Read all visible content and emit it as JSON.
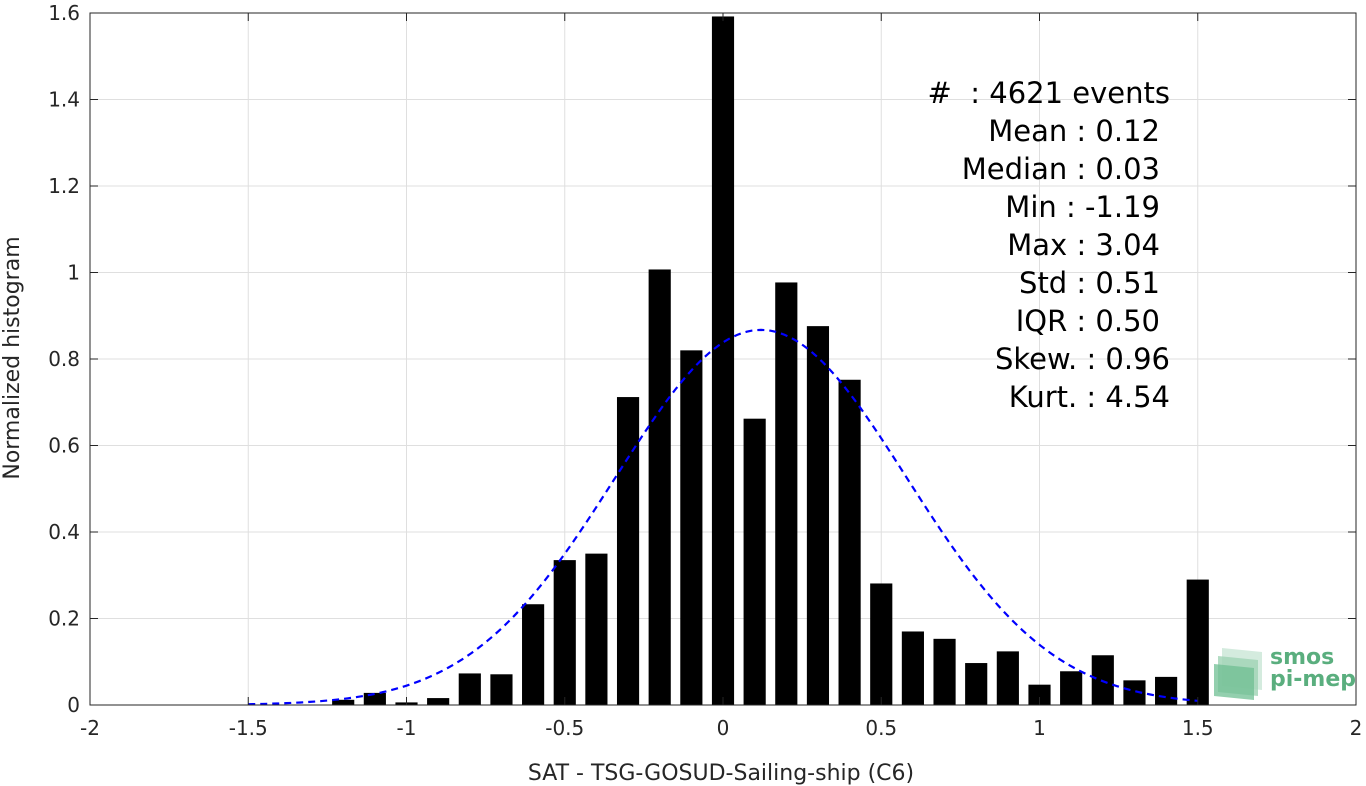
{
  "chart_data": {
    "type": "bar",
    "xlabel": "SAT - TSG-GOSUD-Sailing-ship (C6)",
    "ylabel": "Normalized histogram",
    "xlim": [
      -2,
      2
    ],
    "ylim": [
      0,
      1.6
    ],
    "xticks": [
      -2,
      -1.5,
      -1,
      -0.5,
      0,
      0.5,
      1,
      1.5,
      2
    ],
    "xtick_labels": [
      "-2",
      "-1.5",
      "-1",
      "-0.5",
      "0",
      "0.5",
      "1",
      "1.5",
      "2"
    ],
    "yticks": [
      0,
      0.2,
      0.4,
      0.6,
      0.8,
      1,
      1.2,
      1.4,
      1.6
    ],
    "ytick_labels": [
      "0",
      "0.2",
      "0.4",
      "0.6",
      "0.8",
      "1",
      "1.2",
      "1.4",
      "1.6"
    ],
    "grid": true,
    "bar_width": 0.07,
    "bars": {
      "x": [
        -1.2,
        -1.1,
        -1.0,
        -0.9,
        -0.8,
        -0.7,
        -0.6,
        -0.5,
        -0.4,
        -0.3,
        -0.2,
        -0.1,
        0.0,
        0.1,
        0.2,
        0.3,
        0.4,
        0.5,
        0.6,
        0.7,
        0.8,
        0.9,
        1.0,
        1.1,
        1.2,
        1.3,
        1.4,
        1.5
      ],
      "values": [
        0.012,
        0.028,
        0.006,
        0.016,
        0.073,
        0.071,
        0.233,
        0.335,
        0.35,
        0.712,
        1.007,
        0.82,
        1.592,
        0.662,
        0.977,
        0.876,
        0.752,
        0.281,
        0.17,
        0.153,
        0.097,
        0.124,
        0.047,
        0.078,
        0.115,
        0.057,
        0.065,
        0.29
      ],
      "color": "#000000"
    },
    "fit_curve": {
      "type": "normal",
      "mean": 0.12,
      "std": 0.46,
      "x_range": [
        -1.5,
        1.5
      ],
      "color": "#0000ff",
      "style": "dashed"
    },
    "stats_box": {
      "placement": "top-right",
      "lines": [
        "#  : 4621 events",
        "Mean : 0.12",
        "Median : 0.03",
        "Min : -1.19",
        "Max : 3.04",
        "Std : 0.51",
        "IQR : 0.50",
        "Skew. : 0.96",
        "Kurt. : 4.54"
      ]
    }
  },
  "logo": {
    "line1": "smos",
    "line2": "pi-mep",
    "color": "#5aae7e"
  }
}
